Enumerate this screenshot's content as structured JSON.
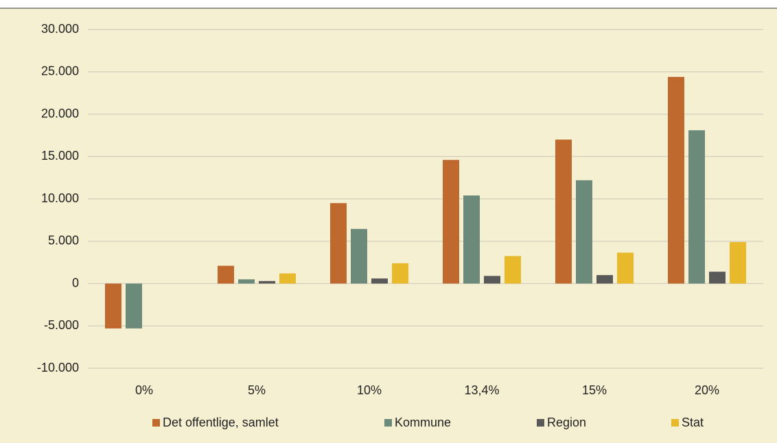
{
  "chart_data": {
    "type": "bar",
    "categories": [
      "0%",
      "5%",
      "10%",
      "13,4%",
      "15%",
      "20%"
    ],
    "series": [
      {
        "name": "Det offentlige, samlet",
        "color": "#c0692f",
        "values": [
          -5300,
          2100,
          9500,
          14600,
          17000,
          24400
        ]
      },
      {
        "name": "Kommune",
        "color": "#6b8a7a",
        "values": [
          -5300,
          500,
          6450,
          10400,
          12200,
          18100
        ]
      },
      {
        "name": "Region",
        "color": "#595959",
        "values": [
          0,
          300,
          600,
          900,
          1000,
          1400
        ]
      },
      {
        "name": "Stat",
        "color": "#e8b92b",
        "values": [
          0,
          1200,
          2400,
          3250,
          3650,
          4900
        ]
      }
    ],
    "ylim": [
      -10000,
      30000
    ],
    "yticks": [
      {
        "value": -10000,
        "label": "-10.000"
      },
      {
        "value": -5000,
        "label": "-5.000"
      },
      0,
      {
        "value": 5000,
        "label": "5.000"
      },
      {
        "value": 10000,
        "label": "10.000"
      },
      {
        "value": 15000,
        "label": "15.000"
      },
      {
        "value": 20000,
        "label": "20.000"
      },
      {
        "value": 25000,
        "label": "25.000"
      },
      {
        "value": 30000,
        "label": "30.000"
      }
    ],
    "grid": true,
    "legend": "bottom"
  }
}
